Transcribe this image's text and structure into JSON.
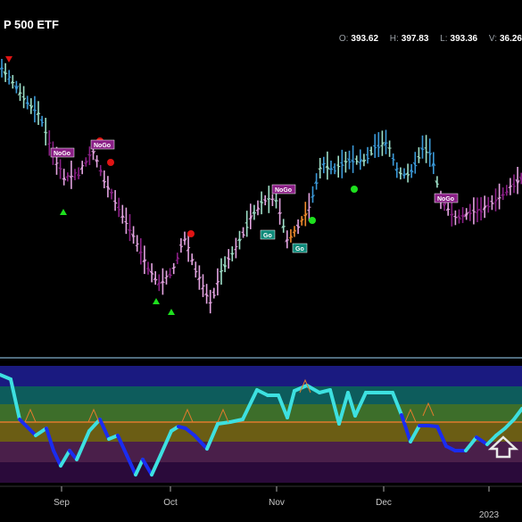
{
  "header": {
    "title": "P 500 ETF",
    "ohlc": [
      {
        "label": "O:",
        "value": "393.62"
      },
      {
        "label": "H:",
        "value": "397.83"
      },
      {
        "label": "L:",
        "value": "393.36"
      },
      {
        "label": "V:",
        "value": "36.26"
      }
    ]
  },
  "chart_data": [
    {
      "type": "bar",
      "description_id": "price",
      "x_axis_labels": [
        "Sep",
        "Oct",
        "Nov",
        "Dec",
        "2023"
      ],
      "bar_colors": {
        "strong_go": "#3b9ad9",
        "weak_go": "#9ee0c8",
        "weak_nogo": "#e2a3e0",
        "strong_nogo": "#8a1f86",
        "no_trend": "#f08a2c"
      },
      "signals": [
        {
          "kind": "NoGo",
          "color": "#8a1f86",
          "dir": "down"
        },
        {
          "kind": "NoGo",
          "color": "#8a1f86",
          "dir": "down"
        },
        {
          "kind": "NoGo",
          "color": "#8a1f86",
          "dir": "down"
        },
        {
          "kind": "NoGo",
          "color": "#8a1f86",
          "dir": "down"
        },
        {
          "kind": "Go",
          "color": "#0d8a7a",
          "dir": "up"
        },
        {
          "kind": "Go",
          "color": "#0d8a7a",
          "dir": "up"
        }
      ]
    },
    {
      "type": "line",
      "description_id": "oscillator",
      "zones": [
        "#1a1a80",
        "#0d5c5c",
        "#3d6e2a",
        "#6b5d14",
        "#4a1f4a",
        "#2a0a3a"
      ],
      "line_colors": {
        "up": "#3de0e0",
        "down": "#1a2cf0"
      },
      "zero_line_color": "#e07a2c"
    }
  ]
}
